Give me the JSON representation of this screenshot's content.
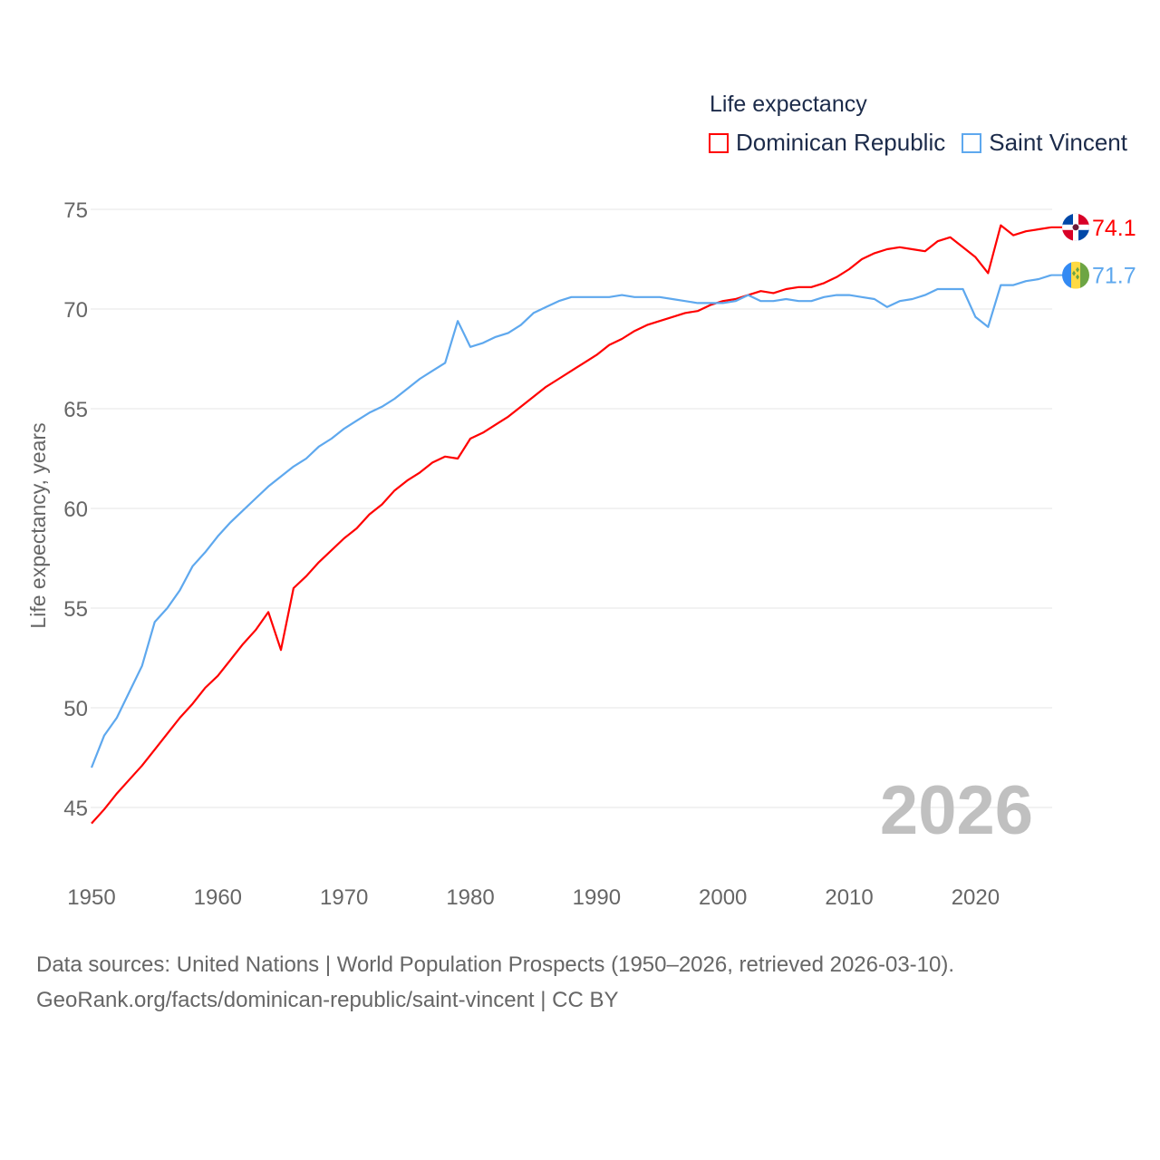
{
  "legend": {
    "title": "Life expectancy"
  },
  "colors": {
    "dominican": "#ff0000",
    "saint_vincent": "#5ea8ee",
    "grid": "#e6e6e6",
    "axis_text": "#666666",
    "year_watermark": "#c0c0c0"
  },
  "chart_data": {
    "type": "line",
    "title": "Life expectancy",
    "xlabel": "",
    "ylabel": "Life expectancy, years",
    "xlim": [
      1950,
      2026
    ],
    "ylim": [
      43,
      75.5
    ],
    "yticks": [
      45,
      50,
      55,
      60,
      65,
      70,
      75
    ],
    "xticks": [
      1950,
      1960,
      1970,
      1980,
      1990,
      2000,
      2010,
      2020
    ],
    "grid": true,
    "legend_position": "top-right",
    "watermark_year": "2026",
    "x_start": 1950,
    "series": [
      {
        "name": "Dominican Republic",
        "end_label": "74.1",
        "flag": "dominican-republic-flag",
        "values": [
          44.2,
          44.9,
          45.7,
          46.4,
          47.1,
          47.9,
          48.7,
          49.5,
          50.2,
          51.0,
          51.6,
          52.4,
          53.2,
          53.9,
          54.8,
          52.9,
          56.0,
          56.6,
          57.3,
          57.9,
          58.5,
          59.0,
          59.7,
          60.2,
          60.9,
          61.4,
          61.8,
          62.3,
          62.6,
          62.5,
          63.5,
          63.8,
          64.2,
          64.6,
          65.1,
          65.6,
          66.1,
          66.5,
          66.9,
          67.3,
          67.7,
          68.2,
          68.5,
          68.9,
          69.2,
          69.4,
          69.6,
          69.8,
          69.9,
          70.2,
          70.4,
          70.5,
          70.7,
          70.9,
          70.8,
          71.0,
          71.1,
          71.1,
          71.3,
          71.6,
          72.0,
          72.5,
          72.8,
          73.0,
          73.1,
          73.0,
          72.9,
          73.4,
          73.6,
          73.1,
          72.6,
          71.8,
          74.2,
          73.7,
          73.9,
          74.0,
          74.1
        ]
      },
      {
        "name": "Saint Vincent",
        "end_label": "71.7",
        "flag": "saint-vincent-flag",
        "values": [
          47.0,
          48.6,
          49.5,
          50.8,
          52.1,
          54.3,
          55.0,
          55.9,
          57.1,
          57.8,
          58.6,
          59.3,
          59.9,
          60.5,
          61.1,
          61.6,
          62.1,
          62.5,
          63.1,
          63.5,
          64.0,
          64.4,
          64.8,
          65.1,
          65.5,
          66.0,
          66.5,
          66.9,
          67.3,
          69.4,
          68.1,
          68.3,
          68.6,
          68.8,
          69.2,
          69.8,
          70.1,
          70.4,
          70.6,
          70.6,
          70.6,
          70.6,
          70.7,
          70.6,
          70.6,
          70.6,
          70.5,
          70.4,
          70.3,
          70.3,
          70.3,
          70.4,
          70.7,
          70.4,
          70.4,
          70.5,
          70.4,
          70.4,
          70.6,
          70.7,
          70.7,
          70.6,
          70.5,
          70.1,
          70.4,
          70.5,
          70.7,
          71.0,
          71.0,
          71.0,
          69.6,
          69.1,
          71.2,
          71.2,
          71.4,
          71.5,
          71.7
        ]
      }
    ]
  },
  "footer": {
    "line1": "Data sources: United Nations | World Population Prospects (1950–2026, retrieved 2026-03-10).",
    "line2": "GeoRank.org/facts/dominican-republic/saint-vincent | CC BY"
  }
}
